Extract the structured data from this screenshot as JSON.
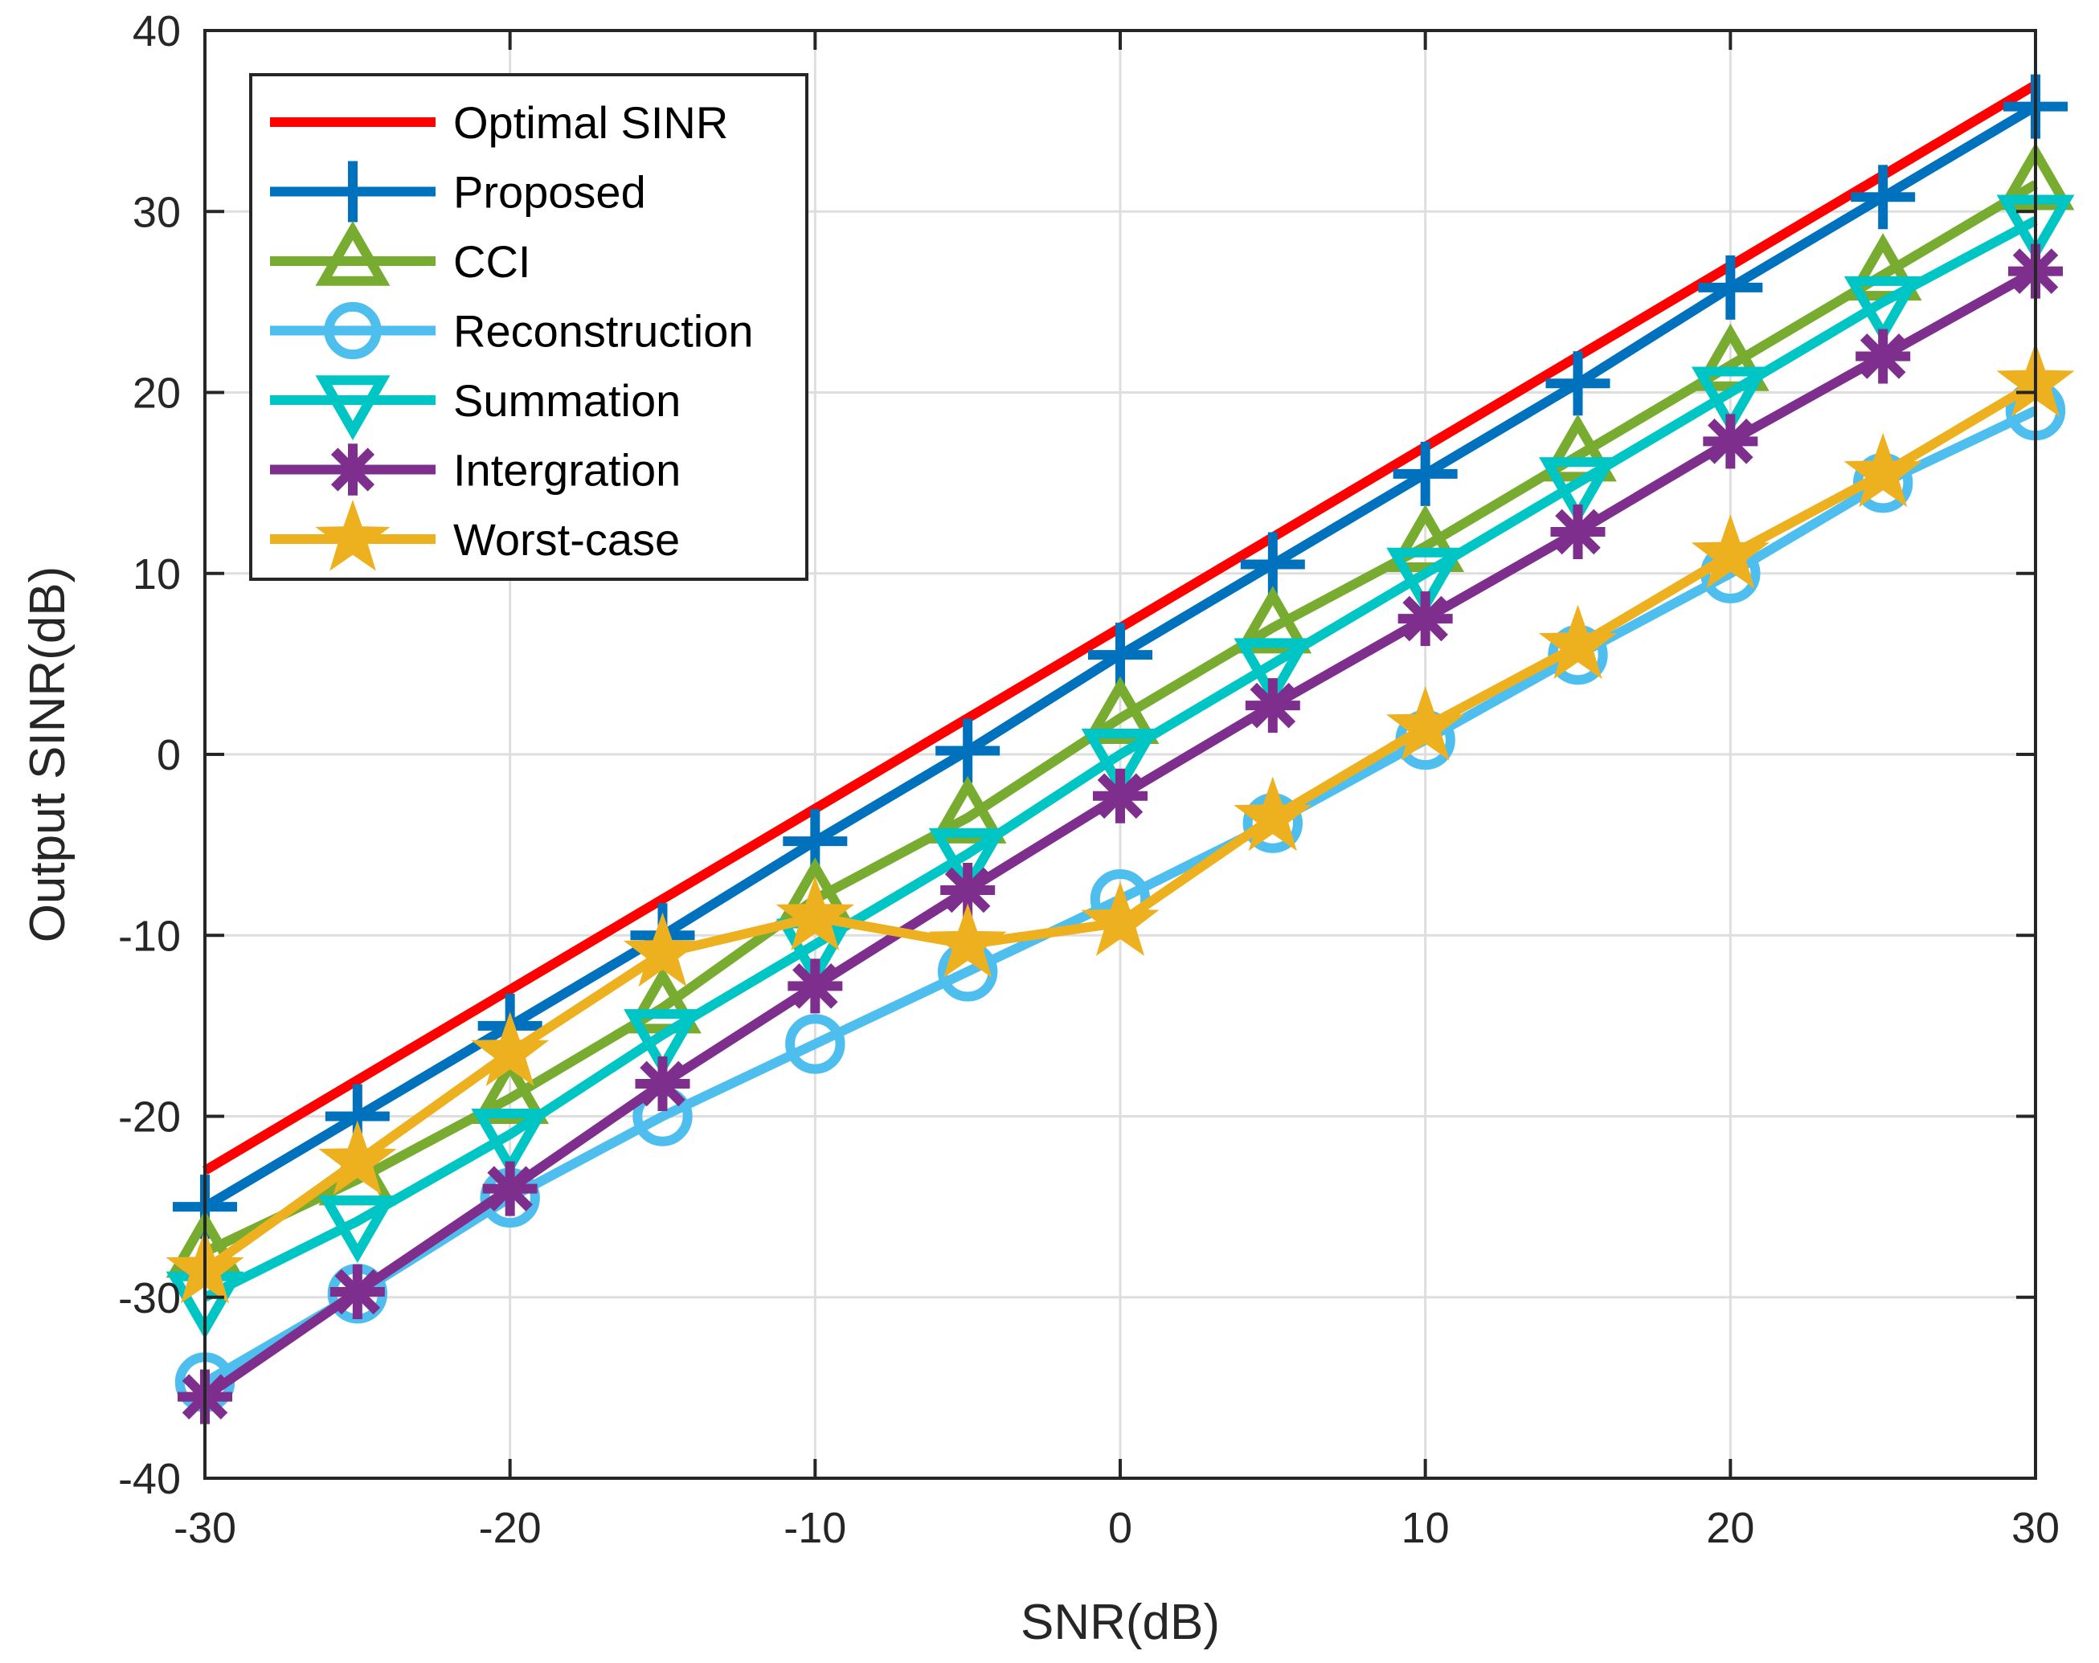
{
  "chart_data": {
    "type": "line",
    "title": "",
    "xlabel": "SNR(dB)",
    "ylabel": "Output SINR(dB)",
    "xlim": [
      -30,
      30
    ],
    "ylim": [
      -40,
      40
    ],
    "xticks": [
      -30,
      -20,
      -10,
      0,
      10,
      20,
      30
    ],
    "yticks": [
      -40,
      -30,
      -20,
      -10,
      0,
      10,
      20,
      30,
      40
    ],
    "grid": true,
    "legend_position": "top-left",
    "x": [
      -30,
      -25,
      -20,
      -15,
      -10,
      -5,
      0,
      5,
      10,
      15,
      20,
      25,
      30
    ],
    "series": [
      {
        "name": "Optimal SINR",
        "color": "#ff0000",
        "marker": "none",
        "x": [
          -30,
          30
        ],
        "values": [
          -23,
          37
        ]
      },
      {
        "name": "Proposed",
        "color": "#0072bd",
        "marker": "plus",
        "values": [
          -25,
          -20,
          -15,
          -10,
          -4.8,
          0.2,
          5.5,
          10.5,
          15.5,
          20.5,
          25.8,
          30.8,
          35.8
        ]
      },
      {
        "name": "CCI",
        "color": "#77ac30",
        "marker": "triangle-up",
        "values": [
          -27.5,
          -23.5,
          -19,
          -14,
          -8,
          -3.5,
          2,
          7,
          11.5,
          16.5,
          21.5,
          26.5,
          31.5
        ]
      },
      {
        "name": "Reconstruction",
        "color": "#4dbeee",
        "marker": "circle",
        "values": [
          -34.7,
          -29.8,
          -24.5,
          -20,
          -16,
          -12,
          -8,
          -3.8,
          0.8,
          5.5,
          10,
          15,
          19
        ]
      },
      {
        "name": "Summation",
        "color": "#00c5c5",
        "marker": "triangle-down",
        "values": [
          -30,
          -25.8,
          -21,
          -15.5,
          -10.5,
          -5.5,
          0,
          5,
          10,
          15,
          20,
          25,
          29.5
        ]
      },
      {
        "name": "Intergration",
        "color": "#7e2f8e",
        "marker": "asterisk",
        "values": [
          -35.5,
          -29.7,
          -24,
          -18.2,
          -12.8,
          -7.5,
          -2.3,
          2.7,
          7.5,
          12.3,
          17.3,
          22,
          26.7
        ]
      },
      {
        "name": "Worst-case",
        "color": "#edb120",
        "marker": "star",
        "values": [
          -28.5,
          -22.5,
          -16.5,
          -11,
          -9,
          -10.5,
          -9.3,
          -3.5,
          1.5,
          6,
          11,
          15.5,
          20.5
        ]
      }
    ]
  }
}
